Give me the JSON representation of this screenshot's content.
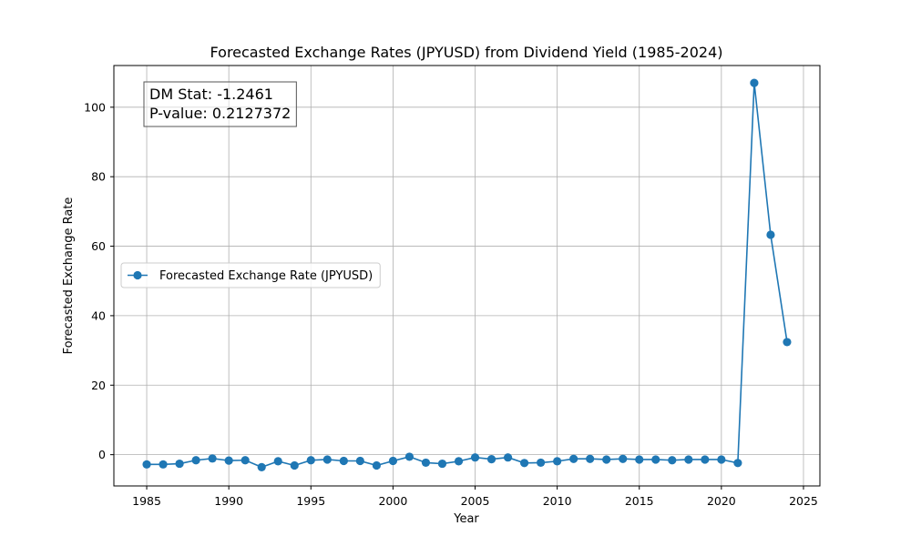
{
  "chart_data": {
    "type": "line",
    "title": "Forecasted Exchange Rates (JPYUSD) from Dividend Yield (1985-2024)",
    "xlabel": "Year",
    "ylabel": "Forecasted Exchange Rate",
    "xlim": [
      1983,
      2026
    ],
    "ylim": [
      -9,
      112
    ],
    "xticks": [
      1985,
      1990,
      1995,
      2000,
      2005,
      2010,
      2015,
      2020,
      2025
    ],
    "yticks": [
      0,
      20,
      40,
      60,
      80,
      100
    ],
    "grid": true,
    "legend_placement": "center-left",
    "color": "#1f77b4",
    "x": [
      1985,
      1986,
      1987,
      1988,
      1989,
      1990,
      1991,
      1992,
      1993,
      1994,
      1995,
      1996,
      1997,
      1998,
      1999,
      2000,
      2001,
      2002,
      2003,
      2004,
      2005,
      2006,
      2007,
      2008,
      2009,
      2010,
      2011,
      2012,
      2013,
      2014,
      2015,
      2016,
      2017,
      2018,
      2019,
      2020,
      2021,
      2022,
      2023,
      2024
    ],
    "series": [
      {
        "name": "Forecasted Exchange Rate (JPYUSD)",
        "values": [
          -2.8,
          -2.8,
          -2.6,
          -1.6,
          -1.1,
          -1.7,
          -1.6,
          -3.6,
          -1.9,
          -3.1,
          -1.6,
          -1.4,
          -1.8,
          -1.8,
          -3.1,
          -1.8,
          -0.6,
          -2.3,
          -2.6,
          -1.9,
          -0.8,
          -1.3,
          -0.8,
          -2.4,
          -2.3,
          -1.9,
          -1.2,
          -1.2,
          -1.4,
          -1.2,
          -1.4,
          -1.4,
          -1.6,
          -1.4,
          -1.4,
          -1.4,
          -2.4,
          107.0,
          63.3,
          32.4
        ],
        "marker": "circle"
      }
    ],
    "annotations": [
      {
        "lines": [
          "DM Stat: -1.2461",
          "P-value: 0.2127372"
        ],
        "placement": "top-left"
      }
    ]
  }
}
